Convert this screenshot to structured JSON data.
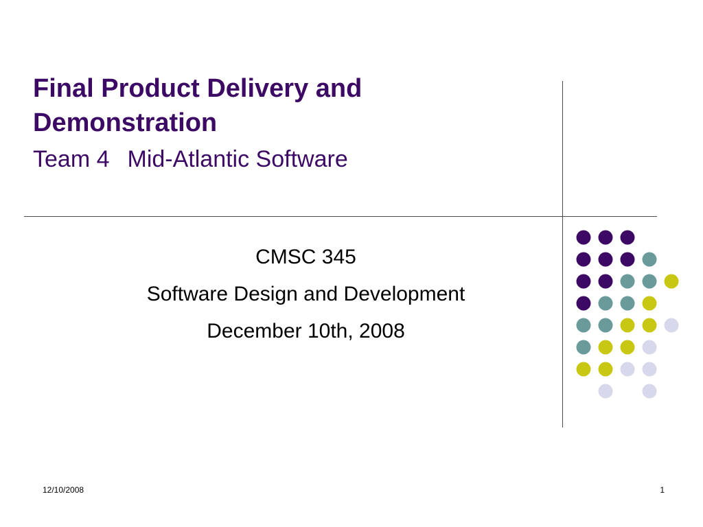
{
  "slide": {
    "title_line_1": "Final Product Delivery and",
    "title_line_2": "Demonstration",
    "subtitle_team": "Team 4",
    "subtitle_company": "Mid-Atlantic Software",
    "body": [
      "CMSC 345",
      "Software Design and Development",
      "December 10th, 2008"
    ],
    "footer_date": "12/10/2008",
    "page_number": "1"
  },
  "colors": {
    "title": "#3c0a64",
    "dot_purple": "#3c0a64",
    "dot_teal": "#6a9a9a",
    "dot_yellow": "#c8c814",
    "dot_lavender": "#d8d8ec",
    "rule": "#4a4a4a"
  },
  "decoration": {
    "dot_rows": [
      [
        "purple",
        "purple",
        "purple",
        null,
        null
      ],
      [
        "purple",
        "purple",
        "purple",
        "teal",
        null
      ],
      [
        "purple",
        "purple",
        "teal",
        "teal",
        "yellow"
      ],
      [
        "purple",
        "teal",
        "teal",
        "yellow",
        null
      ],
      [
        "teal",
        "teal",
        "yellow",
        "yellow",
        "lavender"
      ],
      [
        "teal",
        "yellow",
        "yellow",
        "lavender",
        null
      ],
      [
        "yellow",
        "yellow",
        "lavender",
        "lavender",
        null
      ],
      [
        null,
        "lavender",
        null,
        "lavender",
        null
      ]
    ]
  }
}
